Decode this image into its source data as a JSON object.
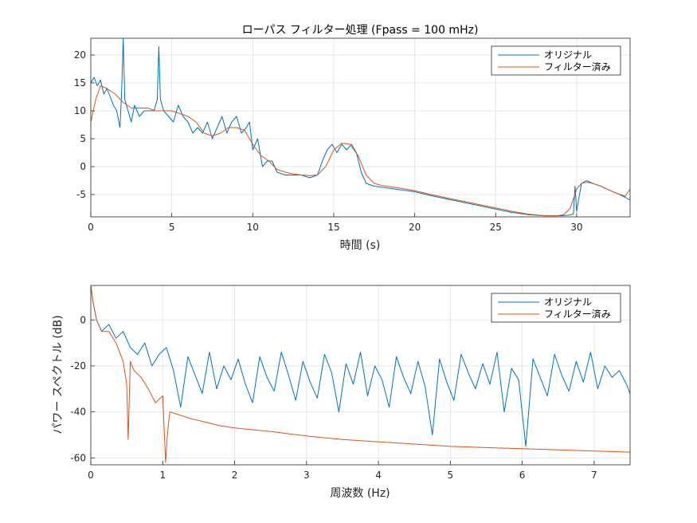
{
  "chart_data": [
    {
      "type": "line",
      "title": "ローパス フィルター処理 (Fpass = 100 mHz)",
      "xlabel": "時間 (s)",
      "ylabel": "",
      "xlim": [
        0,
        33.3
      ],
      "ylim": [
        -9,
        23
      ],
      "xticks": [
        "0",
        "5",
        "10",
        "15",
        "20",
        "25",
        "30"
      ],
      "yticks": [
        "20",
        "15",
        "10",
        "5",
        "0",
        "-5"
      ],
      "grid": true,
      "legend_position": "top-right",
      "series": [
        {
          "name": "オリジナル",
          "color": "#0072BD",
          "x": [
            0,
            0.2,
            0.4,
            0.6,
            0.8,
            1.0,
            1.2,
            1.4,
            1.6,
            1.8,
            1.9,
            2.0,
            2.1,
            2.3,
            2.5,
            2.7,
            3.0,
            3.3,
            3.6,
            3.9,
            4.1,
            4.2,
            4.3,
            4.5,
            4.8,
            5.1,
            5.4,
            5.7,
            6.0,
            6.3,
            6.6,
            6.9,
            7.2,
            7.5,
            7.8,
            8.1,
            8.4,
            8.7,
            9.0,
            9.3,
            9.6,
            9.8,
            10.0,
            10.3,
            10.6,
            10.9,
            11.2,
            11.5,
            12.0,
            12.5,
            13.0,
            13.5,
            14.0,
            14.3,
            14.6,
            14.9,
            15.2,
            15.5,
            15.8,
            16.1,
            16.4,
            16.7,
            17.0,
            17.5,
            18.0,
            19.0,
            20.0,
            21.0,
            22.0,
            23.0,
            24.0,
            25.0,
            26.0,
            27.0,
            28.0,
            29.0,
            29.5,
            29.8,
            29.9,
            30.0,
            30.3,
            30.6,
            31.0,
            31.5,
            32.0,
            32.5,
            33.0,
            33.3
          ],
          "values": [
            15,
            16,
            14.5,
            15.5,
            13,
            14,
            12.5,
            11,
            10,
            7,
            13,
            23,
            12,
            10,
            8,
            11,
            9,
            10,
            10,
            10,
            12,
            21.5,
            12,
            10,
            9,
            8,
            11,
            9,
            8,
            6,
            7,
            6,
            8,
            5,
            7,
            9,
            6,
            8,
            9,
            6,
            7,
            8,
            3,
            5,
            0,
            1,
            1,
            -1,
            -1.5,
            -1.5,
            -1.5,
            -2,
            -1.5,
            1,
            3,
            4,
            2.5,
            4,
            3,
            4,
            2.5,
            -1,
            -3,
            -3.5,
            -3.7,
            -4.1,
            -4.5,
            -5.2,
            -5.8,
            -6.4,
            -7,
            -7.6,
            -8.2,
            -8.6,
            -8.8,
            -8.8,
            -8.7,
            -8.5,
            -3.5,
            -8,
            -3,
            -2.5,
            -3,
            -3.5,
            -4.2,
            -4.8,
            -5.5,
            -6
          ]
        },
        {
          "name": "フィルター済み",
          "color": "#D95319",
          "x": [
            0,
            0.3,
            0.6,
            1.0,
            1.5,
            2.0,
            2.5,
            3.0,
            3.5,
            4.0,
            4.5,
            5.0,
            5.5,
            6.0,
            6.5,
            7.0,
            7.5,
            8.0,
            8.5,
            9.0,
            9.5,
            10.0,
            10.5,
            11.0,
            11.5,
            12.0,
            12.5,
            13.0,
            13.5,
            14.0,
            14.5,
            15.0,
            15.5,
            16.0,
            16.5,
            17.0,
            17.5,
            18.0,
            19.0,
            20.0,
            21.0,
            22.0,
            23.0,
            24.0,
            25.0,
            26.0,
            27.0,
            28.0,
            28.8,
            29.2,
            29.6,
            30.0,
            30.3,
            30.6,
            31.0,
            31.5,
            32.0,
            32.5,
            33.0,
            33.3
          ],
          "values": [
            8,
            12,
            14.5,
            14,
            13,
            11.5,
            10.5,
            10.5,
            10.5,
            10,
            10,
            10,
            9.5,
            9,
            8,
            6,
            5.5,
            6,
            7,
            7,
            6.5,
            4,
            2,
            1,
            -0.5,
            -1,
            -1.3,
            -1.5,
            -1.6,
            -1.5,
            0,
            3,
            4.2,
            4,
            2,
            -1.5,
            -3,
            -3.4,
            -3.8,
            -4.3,
            -5,
            -5.6,
            -6.2,
            -6.8,
            -7.4,
            -8,
            -8.5,
            -8.8,
            -8.8,
            -8.6,
            -7.5,
            -4,
            -3,
            -2.8,
            -3,
            -3.5,
            -4.2,
            -4.8,
            -5.3,
            -4
          ]
        }
      ]
    },
    {
      "type": "line",
      "title": "",
      "xlabel": "周波数 (Hz)",
      "ylabel": "パワー スペクトル (dB)",
      "xlim": [
        0,
        7.5
      ],
      "ylim": [
        -63,
        15
      ],
      "xticks": [
        "0",
        "1",
        "2",
        "3",
        "4",
        "5",
        "6",
        "7"
      ],
      "yticks": [
        "0",
        "-20",
        "-40",
        "-60"
      ],
      "grid": true,
      "legend_position": "top-right",
      "series": [
        {
          "name": "オリジナル",
          "color": "#0072BD",
          "x": [
            0,
            0.03,
            0.08,
            0.15,
            0.25,
            0.35,
            0.45,
            0.55,
            0.65,
            0.75,
            0.85,
            0.95,
            1.05,
            1.15,
            1.25,
            1.35,
            1.45,
            1.55,
            1.65,
            1.75,
            1.85,
            1.95,
            2.05,
            2.15,
            2.25,
            2.35,
            2.45,
            2.55,
            2.65,
            2.75,
            2.85,
            2.95,
            3.05,
            3.15,
            3.25,
            3.35,
            3.45,
            3.55,
            3.65,
            3.75,
            3.85,
            3.95,
            4.05,
            4.15,
            4.25,
            4.35,
            4.45,
            4.55,
            4.65,
            4.75,
            4.85,
            4.95,
            5.05,
            5.15,
            5.25,
            5.35,
            5.45,
            5.55,
            5.65,
            5.75,
            5.85,
            5.95,
            6.05,
            6.15,
            6.25,
            6.35,
            6.45,
            6.55,
            6.65,
            6.75,
            6.85,
            6.95,
            7.05,
            7.15,
            7.25,
            7.35,
            7.45,
            7.5
          ],
          "values": [
            15,
            8,
            0,
            -5,
            -2,
            -8,
            -5,
            -12,
            -15,
            -10,
            -20,
            -15,
            -12,
            -22,
            -38,
            -16,
            -24,
            -32,
            -14,
            -30,
            -20,
            -26,
            -17,
            -28,
            -36,
            -16,
            -25,
            -31,
            -14,
            -24,
            -35,
            -18,
            -27,
            -34,
            -15,
            -23,
            -40,
            -19,
            -28,
            -14,
            -33,
            -20,
            -26,
            -38,
            -16,
            -25,
            -32,
            -18,
            -29,
            -50,
            -17,
            -27,
            -35,
            -15,
            -23,
            -30,
            -19,
            -28,
            -14,
            -40,
            -21,
            -26,
            -55,
            -17,
            -25,
            -33,
            -15,
            -24,
            -31,
            -18,
            -27,
            -14,
            -30,
            -20,
            -25,
            -22,
            -28,
            -32
          ]
        },
        {
          "name": "フィルター済み",
          "color": "#D95319",
          "x": [
            0,
            0.03,
            0.08,
            0.15,
            0.25,
            0.35,
            0.45,
            0.5,
            0.52,
            0.55,
            0.6,
            0.7,
            0.8,
            0.9,
            1.0,
            1.04,
            1.06,
            1.08,
            1.1,
            1.2,
            1.4,
            1.6,
            1.8,
            2.0,
            2.5,
            3.0,
            3.5,
            4.0,
            4.5,
            5.0,
            5.5,
            6.0,
            6.5,
            7.0,
            7.5
          ],
          "values": [
            15,
            8,
            0,
            -5,
            -5,
            -10,
            -18,
            -28,
            -52,
            -18,
            -22,
            -25,
            -30,
            -36,
            -33,
            -62,
            -52,
            -45,
            -40,
            -41,
            -43,
            -44.5,
            -46,
            -47,
            -48.5,
            -50.5,
            -52,
            -53,
            -54,
            -55,
            -55.5,
            -56,
            -56.5,
            -57,
            -57.5
          ]
        }
      ]
    }
  ]
}
